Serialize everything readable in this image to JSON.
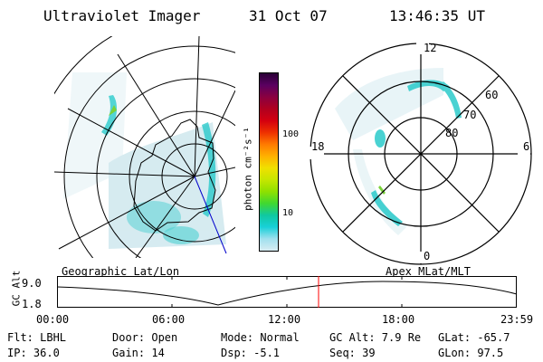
{
  "header": {
    "instrument": "Ultraviolet Imager",
    "date": "31 Oct 07",
    "time": "13:46:35 UT"
  },
  "left_panel": {
    "caption": "Geographic Lat/Lon"
  },
  "right_panel": {
    "caption": "Apex  MLat/MLT",
    "mlt_labels": {
      "top": "12",
      "right": "6",
      "bottom": "0",
      "left": "18"
    },
    "lat_labels": [
      "60",
      "70",
      "80"
    ]
  },
  "colorbar": {
    "unit_label": "photon cm⁻²s⁻¹",
    "tick_labels": [
      "100",
      "10"
    ],
    "colors": [
      "#2a0036",
      "#5a0060",
      "#8a0040",
      "#b00020",
      "#d40010",
      "#ee3000",
      "#ff7a00",
      "#ffb000",
      "#f0e000",
      "#c6e600",
      "#8fe000",
      "#40d830",
      "#10c8a0",
      "#18d0d8",
      "#a0e0ee",
      "#d8ecf2"
    ]
  },
  "altitude_plot": {
    "ylabel": "GC Alt",
    "y_ticks": [
      "9.0",
      "1.8"
    ],
    "x_ticks": [
      "00:00",
      "06:00",
      "12:00",
      "18:00",
      "23:59"
    ],
    "marker_color": "#ff0000",
    "curve_color": "#000000"
  },
  "info": {
    "row1": [
      {
        "label": "Flt:",
        "value": "LBHL"
      },
      {
        "label": "Door:",
        "value": "Open"
      },
      {
        "label": "Mode:",
        "value": "Normal"
      },
      {
        "label": "GC Alt:",
        "value": "7.9 Re"
      },
      {
        "label": "GLat:",
        "value": "-65.7"
      }
    ],
    "row2": [
      {
        "label": "IP:",
        "value": "36.0"
      },
      {
        "label": "Gain:",
        "value": "14"
      },
      {
        "label": "Dsp:",
        "value": "-5.1"
      },
      {
        "label": "Seq:",
        "value": "39"
      },
      {
        "label": "GLon:",
        "value": "97.5"
      }
    ]
  },
  "accent": {
    "aurora": "#1ec8c8",
    "aurora_bright": "#7ad23a",
    "aurora_faint": "#cfe8ee"
  }
}
